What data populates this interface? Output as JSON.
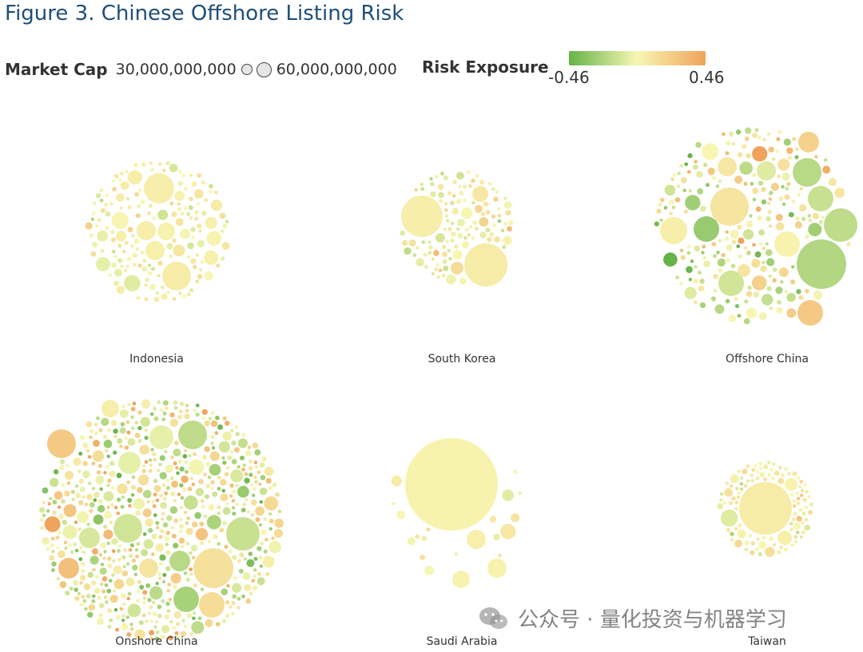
{
  "title": "Figure 3. Chinese Offshore Listing Risk",
  "legend": {
    "size_label": "Market Cap",
    "size_min": "30,000,000,000",
    "size_max": "60,000,000,000",
    "color_label": "Risk Exposure",
    "color_min": "-0.46",
    "color_max": "0.46",
    "colors": {
      "low": "#66b34a",
      "mid": "#f7f7b3",
      "high": "#f0a35c"
    }
  },
  "watermark": "公众号 · 量化投资与机器学习",
  "chart_data": {
    "type": "packed-bubble",
    "size_variable": "Market Cap",
    "color_variable": "Risk Exposure",
    "color_range": [
      -0.46,
      0.46
    ],
    "groups": [
      {
        "name": "Indonesia",
        "large_bubbles": [
          {
            "risk": 0.05
          },
          {
            "risk": 0.06
          },
          {
            "risk": 0.05
          },
          {
            "risk": 0.04
          },
          {
            "risk": 0.03
          },
          {
            "risk": -0.05
          }
        ],
        "small_bubble_count": 160,
        "risk_mean": 0.02,
        "risk_spread": 0.08
      },
      {
        "name": "South Korea",
        "large_bubbles": [
          {
            "risk": 0.05
          },
          {
            "risk": 0.06
          },
          {
            "risk": 0.08
          },
          {
            "risk": 0.15
          },
          {
            "risk": -0.1
          }
        ],
        "small_bubble_count": 110,
        "risk_mean": 0.0,
        "risk_spread": 0.12
      },
      {
        "name": "Offshore China",
        "large_bubbles": [
          {
            "risk": 0.1
          },
          {
            "risk": -0.22
          },
          {
            "risk": -0.18
          },
          {
            "risk": -0.2
          },
          {
            "risk": 0.05
          },
          {
            "risk": -0.12
          },
          {
            "risk": -0.15
          },
          {
            "risk": 0.25
          },
          {
            "risk": 0.2
          },
          {
            "risk": -0.3
          },
          {
            "risk": 0.02
          },
          {
            "risk": 0.08
          },
          {
            "risk": -0.08
          },
          {
            "risk": 0.1
          }
        ],
        "small_bubble_count": 210,
        "risk_mean": -0.02,
        "risk_spread": 0.2
      },
      {
        "name": "Onshore China",
        "large_bubbles": [
          {
            "risk": 0.12
          },
          {
            "risk": -0.15
          },
          {
            "risk": -0.18
          },
          {
            "risk": -0.12
          },
          {
            "risk": 0.25
          },
          {
            "risk": -0.25
          },
          {
            "risk": -0.05
          },
          {
            "risk": 0.15
          },
          {
            "risk": 0.3
          },
          {
            "risk": -0.05
          },
          {
            "risk": -0.1
          },
          {
            "risk": 0.1
          },
          {
            "risk": -0.2
          },
          {
            "risk": 0.05
          }
        ],
        "small_bubble_count": 620,
        "risk_mean": 0.0,
        "risk_spread": 0.22
      },
      {
        "name": "Saudi Arabia",
        "large_bubbles": [
          {
            "risk": 0.02
          },
          {
            "risk": 0.03
          },
          {
            "risk": 0.04
          },
          {
            "risk": 0.03
          }
        ],
        "small_bubble_count": 18,
        "risk_mean": 0.02,
        "risk_spread": 0.06
      },
      {
        "name": "Taiwan",
        "large_bubbles": [
          {
            "risk": 0.06
          },
          {
            "risk": 0.04
          },
          {
            "risk": 0.03
          }
        ],
        "small_bubble_count": 120,
        "risk_mean": 0.02,
        "risk_spread": 0.08
      }
    ]
  }
}
